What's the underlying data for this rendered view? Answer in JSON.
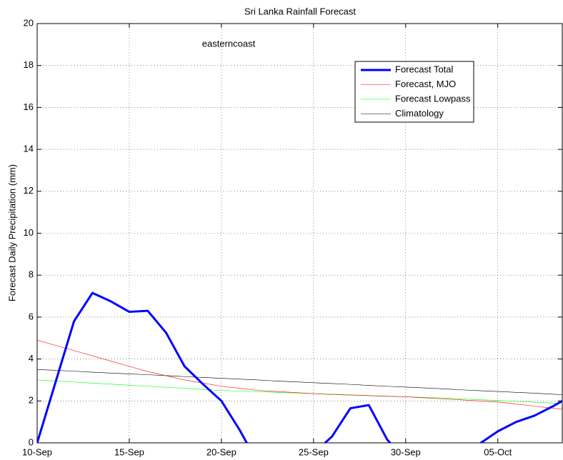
{
  "chart_data": {
    "type": "line",
    "title": "Sri Lanka Rainfall Forecast",
    "ylabel": "Forecast Daily Precipitation (mm)",
    "annotation": "easterncoast",
    "x": [
      0,
      1,
      2,
      3,
      4,
      5,
      6,
      7,
      8,
      9,
      10,
      11,
      12,
      13,
      14,
      15,
      16,
      17,
      18,
      19,
      20,
      21,
      22,
      23,
      24,
      25,
      26,
      27,
      28,
      29
    ],
    "xlim": [
      0,
      28.5
    ],
    "xticks": [
      {
        "value": 0,
        "label": "10-Sep"
      },
      {
        "value": 5,
        "label": "15-Sep"
      },
      {
        "value": 10,
        "label": "20-Sep"
      },
      {
        "value": 15,
        "label": "25-Sep"
      },
      {
        "value": 20,
        "label": "30-Sep"
      },
      {
        "value": 25,
        "label": "05-Oct"
      }
    ],
    "ylim": [
      0,
      20
    ],
    "yticks": [
      0,
      2,
      4,
      6,
      8,
      10,
      12,
      14,
      16,
      18,
      20
    ],
    "grid": true,
    "legend": "northeast",
    "series": [
      {
        "name": "Forecast Total",
        "color": "#0000ff",
        "width": 3,
        "values": [
          0,
          2.9,
          5.8,
          7.15,
          6.75,
          6.25,
          6.3,
          5.25,
          3.65,
          2.8,
          2.0,
          0.6,
          -1.0,
          -1.5,
          -1.2,
          -0.5,
          0.3,
          1.65,
          1.8,
          0.15,
          -0.8,
          -1.2,
          -1.0,
          -0.5,
          -0.05,
          0.55,
          1.0,
          1.3,
          1.75,
          2.25
        ]
      },
      {
        "name": "Forecast, MJO",
        "color": "#ff0000",
        "width": 0.6,
        "values": [
          4.9,
          4.65,
          4.4,
          4.15,
          3.9,
          3.65,
          3.4,
          3.2,
          3.0,
          2.85,
          2.7,
          2.6,
          2.5,
          2.45,
          2.4,
          2.35,
          2.3,
          2.28,
          2.25,
          2.22,
          2.2,
          2.15,
          2.1,
          2.05,
          2.0,
          1.95,
          1.85,
          1.75,
          1.65,
          1.55
        ]
      },
      {
        "name": "Forecast Lowpass",
        "color": "#00ff00",
        "width": 0.6,
        "values": [
          3.0,
          2.95,
          2.9,
          2.85,
          2.8,
          2.75,
          2.7,
          2.65,
          2.6,
          2.55,
          2.5,
          2.47,
          2.44,
          2.41,
          2.38,
          2.35,
          2.32,
          2.29,
          2.26,
          2.23,
          2.2,
          2.17,
          2.14,
          2.1,
          2.06,
          2.02,
          1.98,
          1.94,
          1.9,
          1.86
        ]
      },
      {
        "name": "Climatology",
        "color": "#000000",
        "width": 0.6,
        "values": [
          3.5,
          3.46,
          3.42,
          3.37,
          3.33,
          3.29,
          3.25,
          3.21,
          3.16,
          3.12,
          3.08,
          3.04,
          3.0,
          2.95,
          2.91,
          2.87,
          2.83,
          2.79,
          2.74,
          2.7,
          2.66,
          2.62,
          2.58,
          2.53,
          2.49,
          2.45,
          2.41,
          2.37,
          2.32,
          2.28
        ]
      }
    ]
  }
}
